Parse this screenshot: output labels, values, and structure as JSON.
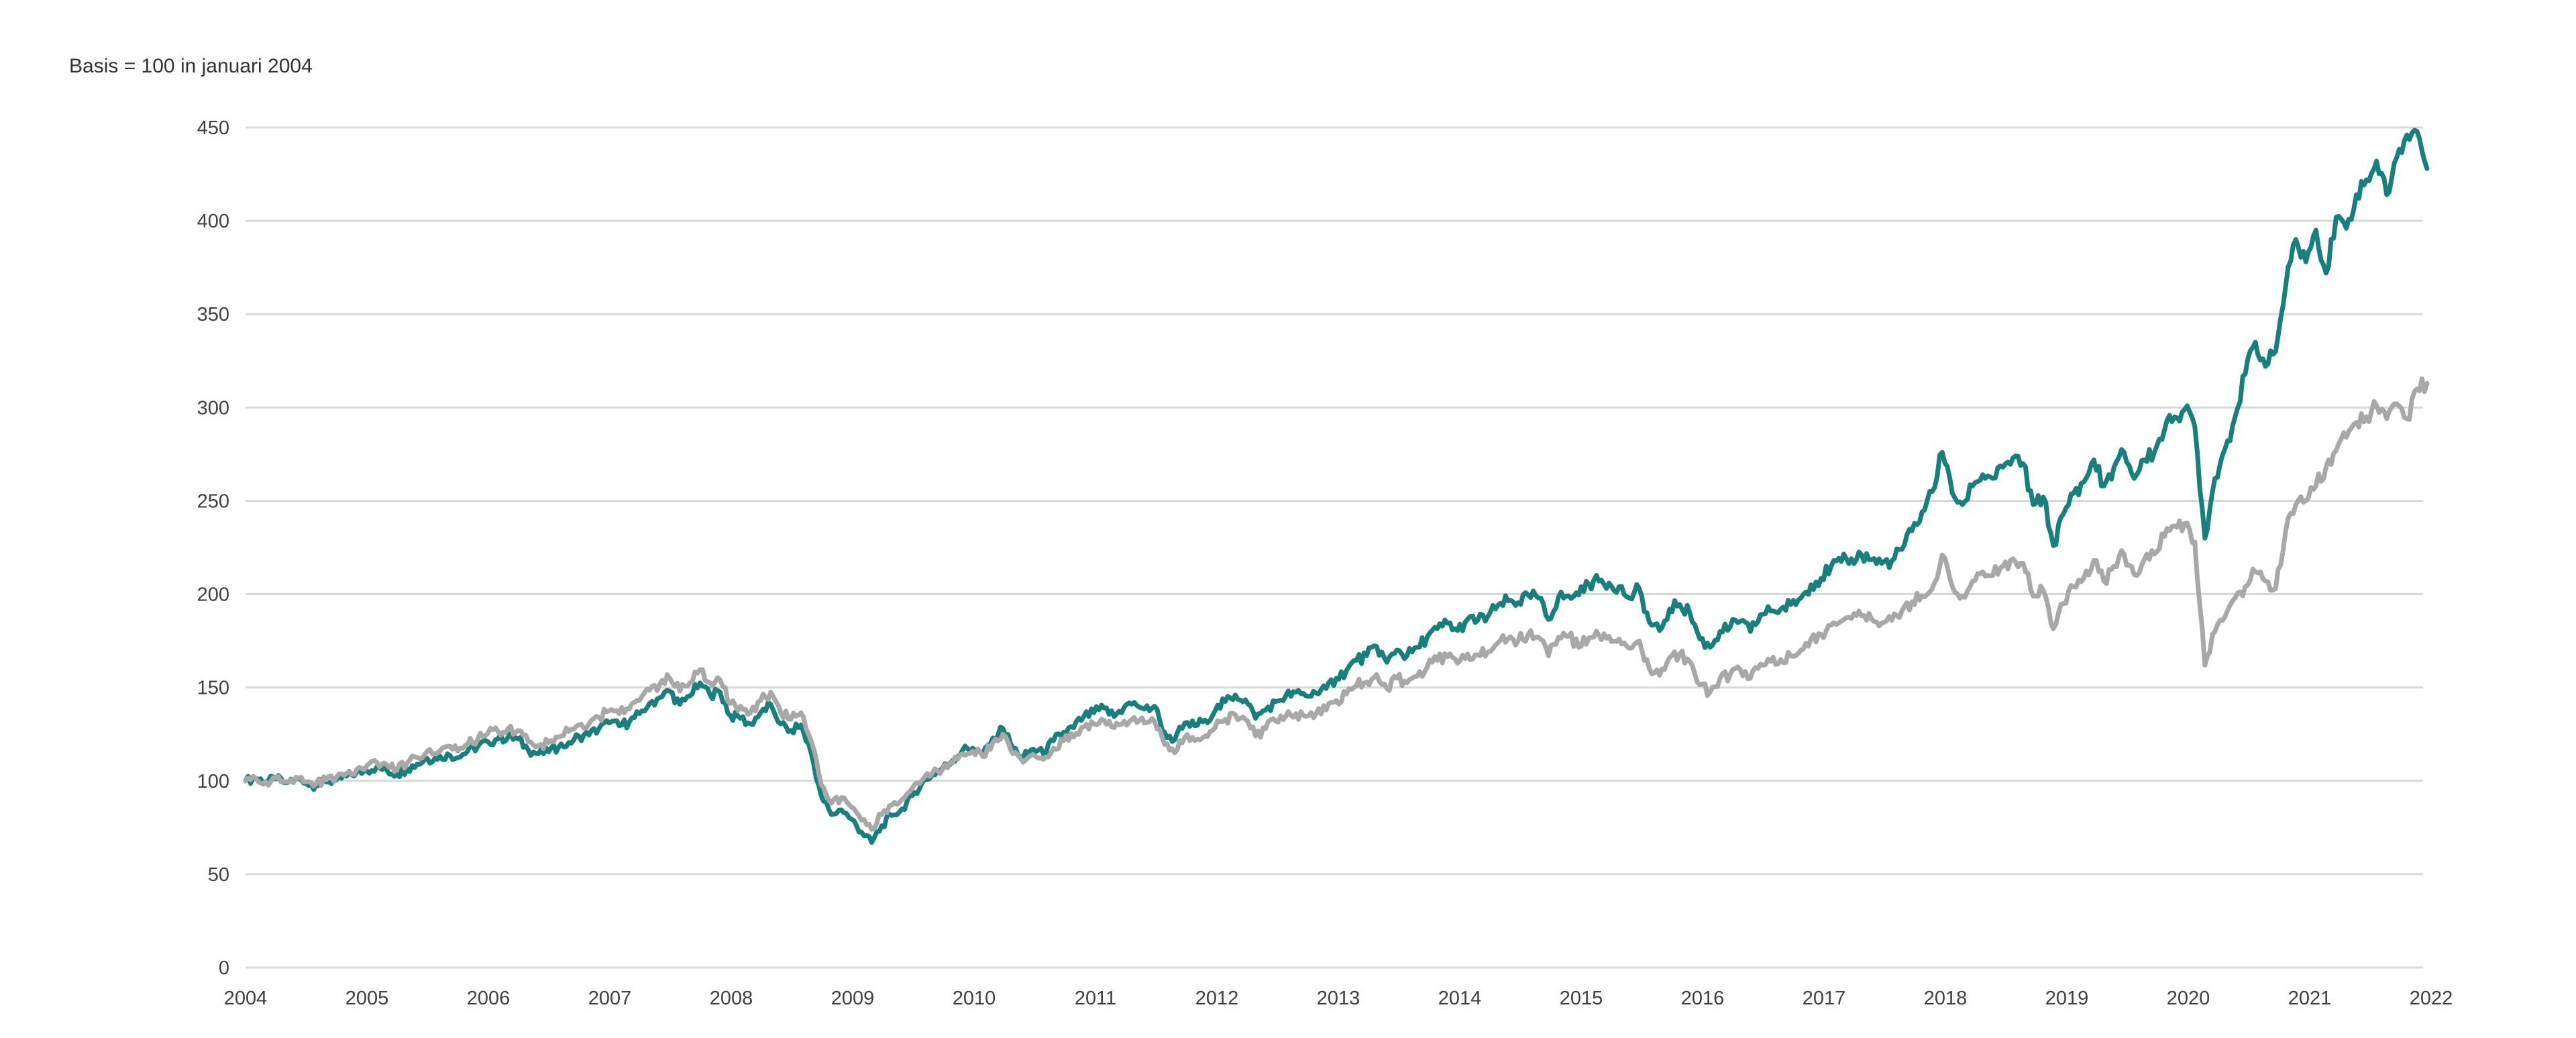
{
  "title": "Basis = 100 in januari 2004",
  "chart_data": {
    "type": "line",
    "title": "Basis = 100 in januari 2004",
    "x_unit": "month",
    "x_start": "2004-01",
    "x_end": "2022-01",
    "x_tick_labels": [
      "2004",
      "2005",
      "2006",
      "2007",
      "2008",
      "2009",
      "2010",
      "2011",
      "2012",
      "2013",
      "2014",
      "2015",
      "2016",
      "2017",
      "2018",
      "2019",
      "2020",
      "2021",
      "2022"
    ],
    "y_tick_labels": [
      "0",
      "50",
      "100",
      "150",
      "200",
      "250",
      "300",
      "350",
      "400",
      "450"
    ],
    "ylim": [
      0,
      450
    ],
    "grid": "horizontal",
    "legend": "none",
    "colors": {
      "series_teal": "#17807d",
      "series_gray": "#a8a8a8",
      "gridline": "#d9d9d9",
      "axis_text": "#404040",
      "title_text": "#333333",
      "background": "#ffffff"
    },
    "series": [
      {
        "id": "teal",
        "color": "#17807d",
        "values": [
          100,
          101.5,
          99.5,
          101,
          99,
          101.5,
          98.5,
          97.5,
          99.5,
          100.5,
          102.5,
          104.5,
          105.5,
          107.5,
          105.5,
          103.5,
          106.5,
          109,
          112,
          111.5,
          114.5,
          112.5,
          116,
          118.5,
          121,
          122.5,
          123.5,
          122.5,
          116.5,
          114.5,
          115.5,
          118,
          120.5,
          124,
          124.5,
          128,
          131,
          129.5,
          131.5,
          136,
          141.5,
          144.5,
          148,
          141,
          145.5,
          152.5,
          146,
          147.5,
          135,
          133.5,
          130.5,
          136.5,
          141,
          130.5,
          127,
          130,
          115,
          92,
          82,
          84.5,
          79.5,
          72.5,
          67,
          76,
          81.5,
          85,
          92,
          99,
          103.5,
          106.5,
          111,
          116.5,
          117.5,
          114.5,
          123,
          128,
          117.5,
          112.5,
          117,
          114.5,
          121.5,
          126,
          128.5,
          134.5,
          136.5,
          139,
          134.5,
          139.5,
          142,
          138.5,
          140,
          126,
          122,
          131,
          129.5,
          132.5,
          137.5,
          142.5,
          146,
          143.5,
          133.5,
          138,
          142.5,
          145.5,
          147.5,
          145.5,
          147,
          149.5,
          155,
          159,
          164.5,
          167,
          172,
          163.5,
          170,
          167,
          171.5,
          177,
          181.5,
          184.5,
          180.5,
          186.5,
          186,
          188,
          194,
          196.5,
          195.5,
          199.5,
          198,
          186.5,
          198.5,
          199,
          199.5,
          205.5,
          207,
          206,
          204,
          198,
          203,
          185,
          180.5,
          192,
          194.5,
          190,
          176,
          171.5,
          180,
          182.5,
          185.5,
          180,
          189,
          191,
          192,
          194.5,
          198,
          205,
          208.5,
          215,
          217.5,
          219,
          221,
          218.5,
          216.5,
          218,
          224,
          234,
          244,
          255,
          276,
          254,
          248,
          258,
          264,
          262,
          268,
          273,
          270,
          248,
          252,
          226,
          243,
          254,
          260,
          272,
          258,
          268,
          276,
          262,
          272,
          276,
          288,
          295,
          299,
          290,
          230,
          262,
          278,
          295,
          318,
          335,
          322,
          330,
          365,
          390,
          378,
          395,
          372,
          402,
          396,
          414,
          422,
          432,
          414,
          434,
          446,
          448,
          428
        ]
      },
      {
        "id": "gray",
        "color": "#a8a8a8",
        "values": [
          100,
          101.5,
          99.5,
          101.5,
          99.5,
          102,
          99.5,
          98.5,
          100.5,
          102,
          104,
          106,
          108,
          110,
          108.5,
          106,
          109.5,
          112.5,
          116,
          115,
          118.5,
          116,
          119.5,
          122.5,
          125.5,
          126.5,
          128,
          127,
          121,
          119,
          120.5,
          123.5,
          126.5,
          130,
          130.5,
          134,
          137.5,
          136,
          138.5,
          143,
          148.5,
          151.5,
          155,
          148,
          152.5,
          159.5,
          152.5,
          154,
          141.5,
          140,
          136.5,
          143,
          147.5,
          136.5,
          133,
          136.5,
          121.5,
          98,
          88,
          91,
          86,
          79,
          74,
          82,
          87,
          90,
          96,
          100.5,
          104,
          106,
          109.5,
          114.5,
          116,
          113,
          120.5,
          125,
          114.5,
          110,
          114,
          111.5,
          117.5,
          121.5,
          123.5,
          129,
          130.5,
          132.5,
          128.5,
          132,
          134,
          131,
          132,
          119.5,
          115,
          123.5,
          121.5,
          124,
          128.5,
          133,
          135.5,
          133,
          124,
          128,
          132,
          134.5,
          136,
          134.5,
          136,
          138,
          143,
          146.5,
          151,
          153,
          157,
          149.5,
          155,
          152.5,
          156,
          161,
          164.5,
          166.5,
          163,
          168,
          167.5,
          169,
          174,
          176,
          175,
          178.5,
          177,
          167,
          177,
          177.5,
          171.5,
          176.5,
          178,
          177.5,
          176,
          171,
          175,
          160,
          156.5,
          166,
          168,
          164,
          151.5,
          147.5,
          155,
          157,
          159.5,
          155,
          162.5,
          164,
          165,
          167,
          170,
          176,
          178.5,
          183.5,
          185.5,
          187,
          188.5,
          186.5,
          184.5,
          186,
          191,
          196,
          199,
          203,
          221,
          204,
          199,
          207,
          212,
          210,
          215,
          219,
          216.5,
          199,
          202,
          181.5,
          195,
          204,
          208.5,
          218,
          207,
          215,
          221.5,
          210.5,
          218.5,
          221.5,
          231,
          236.5,
          238,
          228,
          162,
          180,
          188,
          198,
          204,
          212,
          207,
          203,
          234,
          248,
          250,
          258,
          268,
          277,
          284,
          292,
          295,
          301,
          294,
          302,
          294,
          310,
          313
        ]
      }
    ]
  }
}
